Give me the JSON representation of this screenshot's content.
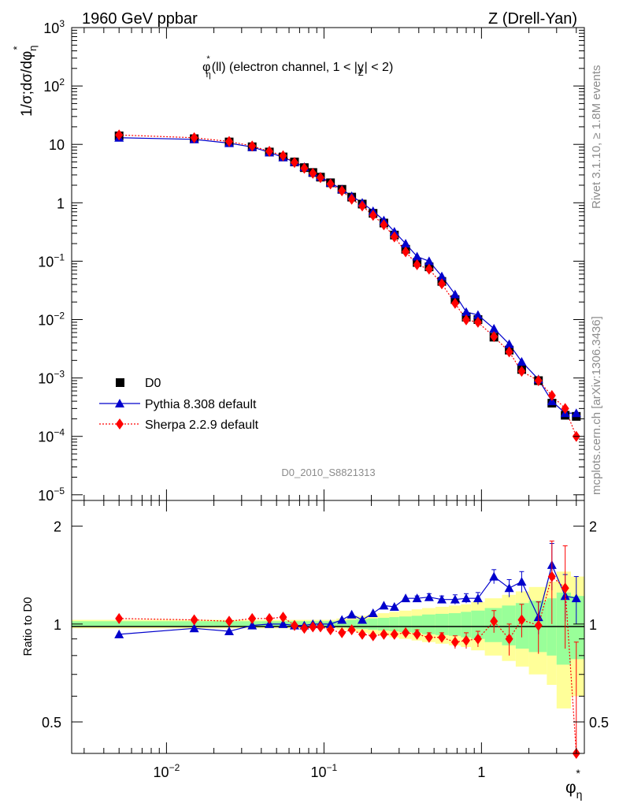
{
  "header": {
    "left": "1960 GeV ppbar",
    "right": "Z (Drell-Yan)"
  },
  "side_text": {
    "rivet": "Rivet 3.1.10, ≥ 1.8M events",
    "mcplots": "mcplots.cern.ch [arXiv:1306.3436]"
  },
  "chart_data": [
    {
      "type": "scatter",
      "title": "φ*η(ll) (electron channel, 1 < |yZ| < 2)",
      "title_parts": {
        "phi": "φ",
        "sup": "*",
        "sub": "η",
        "rest": "(ll) (electron channel, 1 < |y",
        "ysub": "Z",
        "tail": "| < 2)"
      },
      "ylabel": "1/σ;dσ/dφ*η",
      "ylabel_parts": {
        "main": "1/σ;dσ/dφ",
        "sup": "*",
        "sub": "η"
      },
      "watermark": "D0_2010_S8821313",
      "xscale": "log",
      "yscale": "log",
      "xlim": [
        0.0025,
        4.5
      ],
      "ylim": [
        8e-06,
        1000
      ],
      "xticks": [
        {
          "v": 0.01,
          "base": "10",
          "exp": "−2"
        },
        {
          "v": 0.1,
          "base": "10",
          "exp": "−1"
        },
        {
          "v": 1,
          "base": "1",
          "exp": ""
        }
      ],
      "yticks": [
        {
          "v": 1000,
          "base": "10",
          "exp": "3"
        },
        {
          "v": 100,
          "base": "10",
          "exp": "2"
        },
        {
          "v": 10,
          "base": "10",
          "exp": ""
        },
        {
          "v": 1,
          "base": "1",
          "exp": ""
        },
        {
          "v": 0.1,
          "base": "10",
          "exp": "−1"
        },
        {
          "v": 0.01,
          "base": "10",
          "exp": "−2"
        },
        {
          "v": 0.001,
          "base": "10",
          "exp": "−3"
        },
        {
          "v": 0.0001,
          "base": "10",
          "exp": "−4"
        },
        {
          "v": 1e-05,
          "base": "10",
          "exp": "−5"
        }
      ],
      "legend": [
        "D0",
        "Pythia 8.308 default",
        "Sherpa 2.2.9 default"
      ],
      "legend_position": "bottom-left",
      "x": [
        0.005,
        0.015,
        0.025,
        0.035,
        0.045,
        0.055,
        0.065,
        0.075,
        0.085,
        0.095,
        0.11,
        0.13,
        0.15,
        0.175,
        0.205,
        0.24,
        0.28,
        0.33,
        0.39,
        0.465,
        0.56,
        0.68,
        0.8,
        0.95,
        1.2,
        1.5,
        1.8,
        2.3,
        2.8,
        3.4,
        4.0
      ],
      "series": [
        {
          "name": "D0",
          "color": "#000000",
          "marker": "square",
          "values": [
            14,
            12.5,
            11,
            9.1,
            7.4,
            6.1,
            5.0,
            4.0,
            3.3,
            2.75,
            2.2,
            1.7,
            1.25,
            0.95,
            0.66,
            0.45,
            0.28,
            0.16,
            0.095,
            0.08,
            0.045,
            0.022,
            0.011,
            0.01,
            0.005,
            0.003,
            0.0014,
            0.0009,
            0.00037,
            0.00023,
            0.00022
          ]
        },
        {
          "name": "Pythia 8.308 default",
          "color": "#0000cc",
          "marker": "triangle",
          "values": [
            13,
            12.2,
            10.5,
            9.0,
            7.3,
            6.0,
            5.0,
            4.1,
            3.3,
            2.8,
            2.2,
            1.7,
            1.3,
            1.0,
            0.72,
            0.5,
            0.32,
            0.2,
            0.12,
            0.1,
            0.055,
            0.027,
            0.0135,
            0.012,
            0.007,
            0.0038,
            0.0019,
            0.00095,
            0.0004,
            0.00025,
            0.00025
          ]
        },
        {
          "name": "Sherpa 2.2.9 default",
          "color": "#ff0000",
          "marker": "diamond",
          "values": [
            14.5,
            13,
            11.2,
            9.4,
            7.6,
            6.4,
            4.9,
            3.9,
            3.2,
            2.7,
            2.1,
            1.6,
            1.15,
            0.88,
            0.61,
            0.42,
            0.26,
            0.145,
            0.087,
            0.073,
            0.041,
            0.019,
            0.0099,
            0.009,
            0.0051,
            0.0028,
            0.0013,
            0.0009,
            0.0005,
            0.0003,
            0.0001
          ]
        }
      ]
    },
    {
      "type": "scatter",
      "ylabel": "Ratio to D0",
      "xlabel": "φ*η",
      "xlabel_parts": {
        "main": "φ",
        "sup": "*",
        "sub": "η"
      },
      "xscale": "log",
      "yscale": "log",
      "xlim": [
        0.0025,
        4.5
      ],
      "ylim": [
        0.4,
        2.4
      ],
      "yticks": [
        {
          "v": 0.5,
          "label": "0.5"
        },
        {
          "v": 1,
          "label": "1"
        },
        {
          "v": 2,
          "label": "2"
        }
      ],
      "x": [
        0.005,
        0.015,
        0.025,
        0.035,
        0.045,
        0.055,
        0.065,
        0.075,
        0.085,
        0.095,
        0.11,
        0.13,
        0.15,
        0.175,
        0.205,
        0.24,
        0.28,
        0.33,
        0.39,
        0.465,
        0.56,
        0.68,
        0.8,
        0.95,
        1.2,
        1.5,
        1.8,
        2.3,
        2.8,
        3.4,
        4.0
      ],
      "bands": {
        "edges": [
          0.0025,
          0.02,
          0.04,
          0.06,
          0.08,
          0.1,
          0.12,
          0.14,
          0.16,
          0.19,
          0.22,
          0.26,
          0.3,
          0.36,
          0.42,
          0.51,
          0.62,
          0.74,
          0.86,
          1.05,
          1.35,
          1.65,
          2.0,
          2.6,
          3.0,
          3.7,
          4.5
        ],
        "inner": [
          0.02,
          0.02,
          0.02,
          0.02,
          0.02,
          0.02,
          0.025,
          0.03,
          0.035,
          0.04,
          0.045,
          0.05,
          0.055,
          0.06,
          0.07,
          0.075,
          0.08,
          0.09,
          0.1,
          0.12,
          0.14,
          0.16,
          0.18,
          0.2,
          0.25,
          0.22
        ],
        "outer": [
          0.03,
          0.03,
          0.03,
          0.03,
          0.03,
          0.03,
          0.04,
          0.05,
          0.06,
          0.07,
          0.08,
          0.09,
          0.1,
          0.11,
          0.12,
          0.13,
          0.14,
          0.15,
          0.17,
          0.2,
          0.23,
          0.26,
          0.3,
          0.35,
          0.45,
          0.4
        ],
        "inner_color": "#99ff99",
        "outer_color": "#ffff99"
      },
      "series": [
        {
          "name": "Pythia 8.308 default",
          "color": "#0000cc",
          "marker": "triangle",
          "values": [
            0.93,
            0.97,
            0.95,
            0.99,
            1.0,
            1.0,
            0.99,
            0.99,
            1.0,
            1.0,
            1.0,
            1.03,
            1.07,
            1.03,
            1.08,
            1.14,
            1.13,
            1.2,
            1.2,
            1.21,
            1.19,
            1.19,
            1.2,
            1.2,
            1.4,
            1.29,
            1.35,
            1.05,
            1.52,
            1.22,
            1.2
          ],
          "errors": [
            0,
            0,
            0,
            0,
            0,
            0,
            0,
            0,
            0,
            0,
            0,
            0,
            0,
            0,
            0,
            0,
            0,
            0,
            0.02,
            0.03,
            0.03,
            0.04,
            0.04,
            0.05,
            0.07,
            0.08,
            0.1,
            0.12,
            0.25,
            0.2,
            0.2
          ]
        },
        {
          "name": "Sherpa 2.2.9 default",
          "color": "#ff0000",
          "marker": "diamond",
          "values": [
            1.04,
            1.03,
            1.02,
            1.04,
            1.04,
            1.05,
            0.99,
            0.97,
            0.98,
            0.98,
            0.96,
            0.94,
            0.96,
            0.93,
            0.92,
            0.93,
            0.93,
            0.94,
            0.93,
            0.91,
            0.91,
            0.88,
            0.89,
            0.9,
            1.02,
            0.9,
            1.03,
            0.99,
            1.4,
            1.29,
            0.38
          ],
          "errors": [
            0,
            0,
            0,
            0,
            0,
            0,
            0,
            0,
            0,
            0,
            0,
            0,
            0,
            0,
            0,
            0,
            0,
            0,
            0.03,
            0.03,
            0.03,
            0.04,
            0.05,
            0.05,
            0.08,
            0.1,
            0.12,
            0.18,
            0.4,
            0.45,
            0.5
          ]
        }
      ]
    }
  ]
}
